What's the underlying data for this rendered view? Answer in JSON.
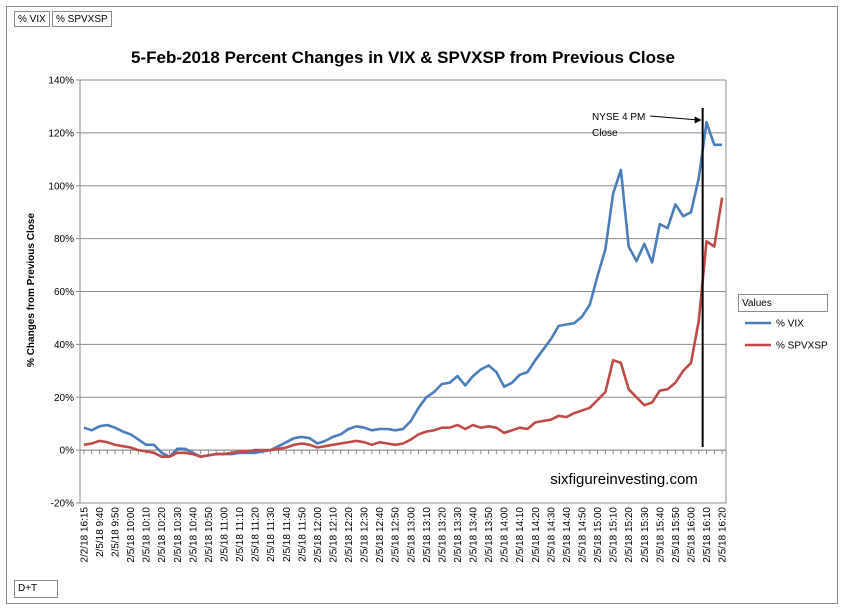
{
  "pivot_fields": {
    "vix_button": "% VIX",
    "spvxsp_button": "% SPVXSP",
    "axis_button": "D+T"
  },
  "legend": {
    "header": "Values",
    "items": [
      {
        "label": "% VIX",
        "color": "#4a7ebb"
      },
      {
        "label": "% SPVXSP",
        "color": "#be4b48"
      }
    ]
  },
  "annotation": {
    "line1": "NYSE 4 PM",
    "line2": "Close",
    "at_category": "2/5/18 16:05"
  },
  "watermark": "sixfigureinvesting.com",
  "chart_data": {
    "type": "line",
    "title": "5-Feb-2018 Percent Changes in VIX & SPVXSP from Previous Close",
    "ylabel": "% Changes from Previous Close",
    "xlabel": "",
    "ylim": [
      -20,
      140
    ],
    "yticks": [
      "-20%",
      "0%",
      "20%",
      "40%",
      "60%",
      "80%",
      "100%",
      "120%",
      "140%"
    ],
    "grid": true,
    "legend_position": "right",
    "categories": [
      "2/2/18 16:15",
      "2/5/18 9:35",
      "2/5/18 9:40",
      "2/5/18 9:45",
      "2/5/18 9:50",
      "2/5/18 9:55",
      "2/5/18 10:00",
      "2/5/18 10:05",
      "2/5/18 10:10",
      "2/5/18 10:15",
      "2/5/18 10:20",
      "2/5/18 10:25",
      "2/5/18 10:30",
      "2/5/18 10:35",
      "2/5/18 10:40",
      "2/5/18 10:45",
      "2/5/18 10:50",
      "2/5/18 10:55",
      "2/5/18 11:00",
      "2/5/18 11:05",
      "2/5/18 11:10",
      "2/5/18 11:15",
      "2/5/18 11:20",
      "2/5/18 11:25",
      "2/5/18 11:30",
      "2/5/18 11:35",
      "2/5/18 11:40",
      "2/5/18 11:45",
      "2/5/18 11:50",
      "2/5/18 11:55",
      "2/5/18 12:00",
      "2/5/18 12:05",
      "2/5/18 12:10",
      "2/5/18 12:15",
      "2/5/18 12:20",
      "2/5/18 12:25",
      "2/5/18 12:30",
      "2/5/18 12:35",
      "2/5/18 12:40",
      "2/5/18 12:45",
      "2/5/18 12:50",
      "2/5/18 12:55",
      "2/5/18 13:00",
      "2/5/18 13:05",
      "2/5/18 13:10",
      "2/5/18 13:15",
      "2/5/18 13:20",
      "2/5/18 13:25",
      "2/5/18 13:30",
      "2/5/18 13:35",
      "2/5/18 13:40",
      "2/5/18 13:45",
      "2/5/18 13:50",
      "2/5/18 13:55",
      "2/5/18 14:00",
      "2/5/18 14:05",
      "2/5/18 14:10",
      "2/5/18 14:15",
      "2/5/18 14:20",
      "2/5/18 14:25",
      "2/5/18 14:30",
      "2/5/18 14:35",
      "2/5/18 14:40",
      "2/5/18 14:45",
      "2/5/18 14:50",
      "2/5/18 14:55",
      "2/5/18 15:00",
      "2/5/18 15:05",
      "2/5/18 15:10",
      "2/5/18 15:15",
      "2/5/18 15:20",
      "2/5/18 15:25",
      "2/5/18 15:30",
      "2/5/18 15:35",
      "2/5/18 15:40",
      "2/5/18 15:45",
      "2/5/18 15:50",
      "2/5/18 15:55",
      "2/5/18 16:00",
      "2/5/18 16:05",
      "2/5/18 16:10",
      "2/5/18 16:15",
      "2/5/18 16:20"
    ],
    "label_every": 2,
    "series": [
      {
        "name": "% VIX",
        "color": "#4a7ebb",
        "values": [
          8.5,
          7.5,
          9,
          9.5,
          8.5,
          7,
          6,
          4,
          2,
          2,
          -1,
          -2.5,
          0.5,
          0.5,
          -1,
          -2.5,
          -2,
          -1.5,
          -1.5,
          -1.5,
          -1,
          -1,
          -1,
          -0.5,
          0,
          1.5,
          3,
          4.5,
          5,
          4.5,
          2.5,
          3.5,
          5,
          6,
          8,
          9,
          8.5,
          7.5,
          8,
          8,
          7.5,
          8,
          11,
          16,
          20,
          22,
          25,
          25.5,
          28,
          24.5,
          28,
          30.5,
          32,
          29.5,
          24,
          25.5,
          28.5,
          29.5,
          34,
          38,
          42,
          47,
          47.5,
          48,
          50.5,
          55,
          66,
          76,
          97,
          106,
          77,
          71.5,
          78,
          71,
          85.5,
          84,
          93,
          88.5,
          90,
          103,
          124,
          115.5,
          115.5
        ]
      },
      {
        "name": "% SPVXSP",
        "color": "#be4b48",
        "values": [
          2,
          2.5,
          3.5,
          3,
          2,
          1.5,
          1,
          0,
          -0.5,
          -1,
          -2.5,
          -2.5,
          -1,
          -1,
          -1.5,
          -2.5,
          -2,
          -1.5,
          -1.5,
          -1,
          -0.5,
          -0.5,
          0,
          0,
          0,
          0.5,
          1,
          2,
          2.5,
          2,
          1,
          1.5,
          2,
          2.5,
          3,
          3.5,
          3,
          2,
          3,
          2.5,
          2,
          2.5,
          4,
          6,
          7,
          7.5,
          8.5,
          8.5,
          9.5,
          8,
          9.5,
          8.5,
          9,
          8.5,
          6.5,
          7.5,
          8.5,
          8,
          10.5,
          11,
          11.5,
          13,
          12.5,
          14,
          15,
          16,
          19,
          22,
          34,
          33,
          23,
          20,
          17,
          18,
          22.5,
          23,
          25.5,
          30,
          33,
          49,
          79,
          77,
          95.5
        ]
      }
    ]
  }
}
